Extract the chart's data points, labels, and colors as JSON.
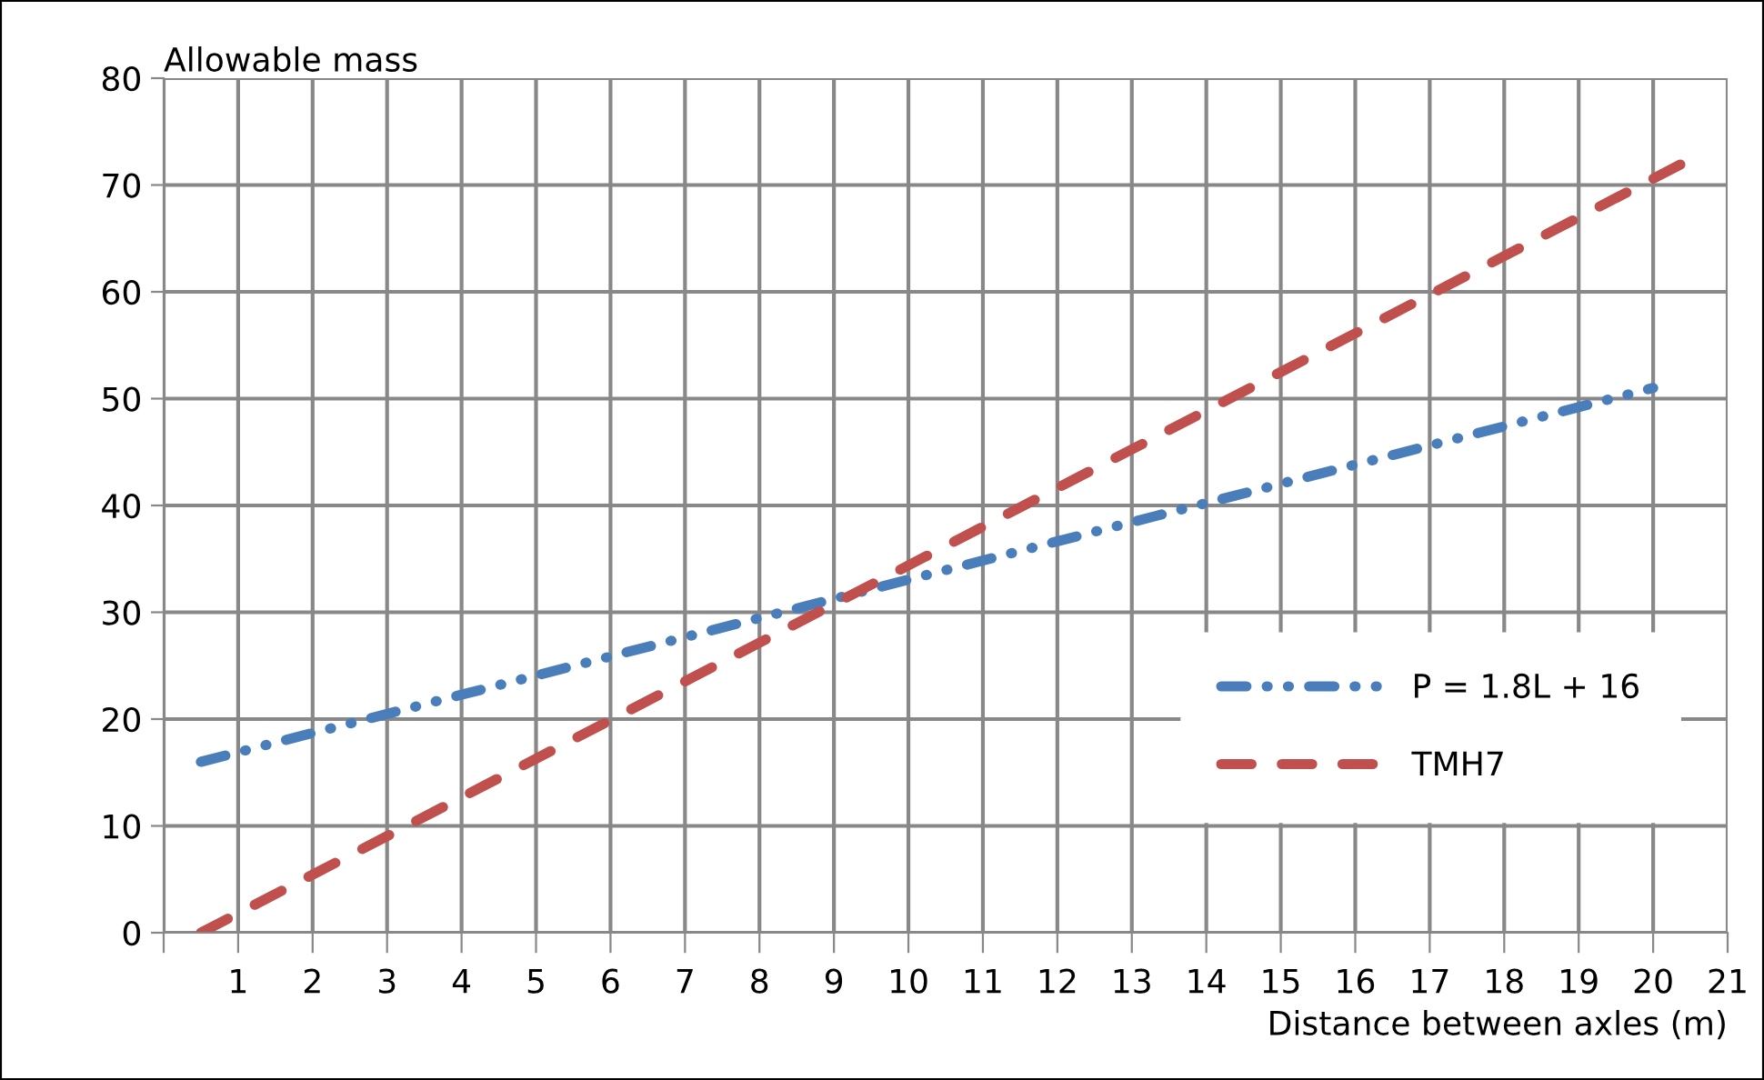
{
  "chart_data": {
    "type": "line",
    "xlabel": "Distance between axles (m)",
    "ylabel": "Allowable mass",
    "xlim": [
      0,
      21
    ],
    "xticks": [
      {
        "value": 0,
        "label": null
      },
      1,
      2,
      3,
      4,
      5,
      6,
      7,
      8,
      9,
      10,
      11,
      12,
      13,
      14,
      15,
      16,
      17,
      18,
      19,
      20,
      21
    ],
    "ylim": [
      0,
      80
    ],
    "yticks": [
      0,
      10,
      20,
      30,
      40,
      50,
      60,
      70,
      80
    ],
    "grid": true,
    "legend": "right",
    "series": [
      {
        "name": "P = 1.8L + 16",
        "color": "#4a7ebb",
        "line_style": "dashdot",
        "x": [
          0.5,
          20
        ],
        "values": [
          16,
          51
        ]
      },
      {
        "name": "TMH7",
        "color": "#c0504d",
        "line_style": "dashed",
        "x": [
          0.5,
          20.5
        ],
        "values": [
          0,
          72.4
        ]
      }
    ]
  }
}
